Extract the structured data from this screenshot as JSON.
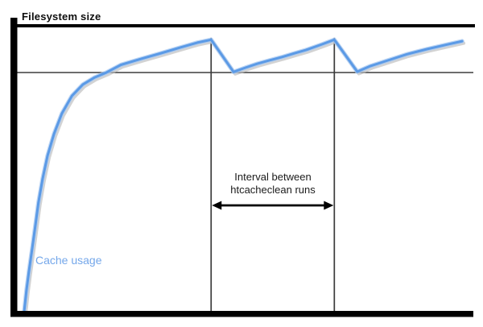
{
  "labels": {
    "filesystem_size": "Filesystem size",
    "cache_usage": "Cache usage",
    "interval_line1": "Interval between",
    "interval_line2": "htcacheclean runs"
  },
  "colors": {
    "curve": "#5b9ae6",
    "curve_halo": "#a9c9f1",
    "curve_shadow": "#bcbcbc",
    "cache_usage_label_text": "#74a7ea",
    "axis": "#000000",
    "guide_line": "#2b2b2b",
    "run_line": "#3a3a3a",
    "arrow": "#000000"
  },
  "chart_data": {
    "type": "line",
    "title": "",
    "xlabel": "",
    "ylabel": "Filesystem size",
    "x_axis": {
      "range": [
        0,
        100
      ],
      "ticks": [],
      "gridlines": false
    },
    "y_axis": {
      "range": [
        0,
        100
      ],
      "ticks": [],
      "gridlines": false
    },
    "legend": "inline-label",
    "filesystem_capacity_level": 100,
    "cache_limit_level": 83.6,
    "htcacheclean_run_times_x": [
      42.4,
      69.3
    ],
    "run_line_top_level": 95.8,
    "interval_arrow_level": 37,
    "series": [
      {
        "name": "Cache usage",
        "color": "#5b9ae6",
        "points": [
          [
            1.6,
            0
          ],
          [
            2.1,
            7.3
          ],
          [
            2.6,
            13.6
          ],
          [
            3.3,
            21.5
          ],
          [
            4.0,
            29.7
          ],
          [
            4.7,
            37.9
          ],
          [
            5.6,
            46.3
          ],
          [
            6.7,
            54.5
          ],
          [
            8.1,
            62.1
          ],
          [
            9.8,
            69.2
          ],
          [
            12.0,
            75.4
          ],
          [
            14.4,
            79.4
          ],
          [
            17.0,
            81.9
          ],
          [
            19.5,
            83.6
          ],
          [
            22.7,
            86.3
          ],
          [
            27.1,
            88.4
          ],
          [
            31.5,
            90.4
          ],
          [
            35.9,
            92.5
          ],
          [
            39.4,
            94.1
          ],
          [
            42.4,
            95.1
          ],
          [
            47.3,
            83.8
          ],
          [
            49.9,
            85.3
          ],
          [
            52.5,
            86.7
          ],
          [
            55.2,
            87.9
          ],
          [
            57.8,
            89.0
          ],
          [
            60.5,
            90.3
          ],
          [
            63.1,
            91.5
          ],
          [
            66.6,
            93.5
          ],
          [
            69.3,
            95.1
          ],
          [
            74.3,
            83.9
          ],
          [
            77.2,
            85.9
          ],
          [
            80.7,
            87.7
          ],
          [
            85.1,
            90.0
          ],
          [
            89.5,
            91.8
          ],
          [
            93.8,
            93.4
          ],
          [
            97.2,
            94.6
          ]
        ]
      }
    ]
  }
}
